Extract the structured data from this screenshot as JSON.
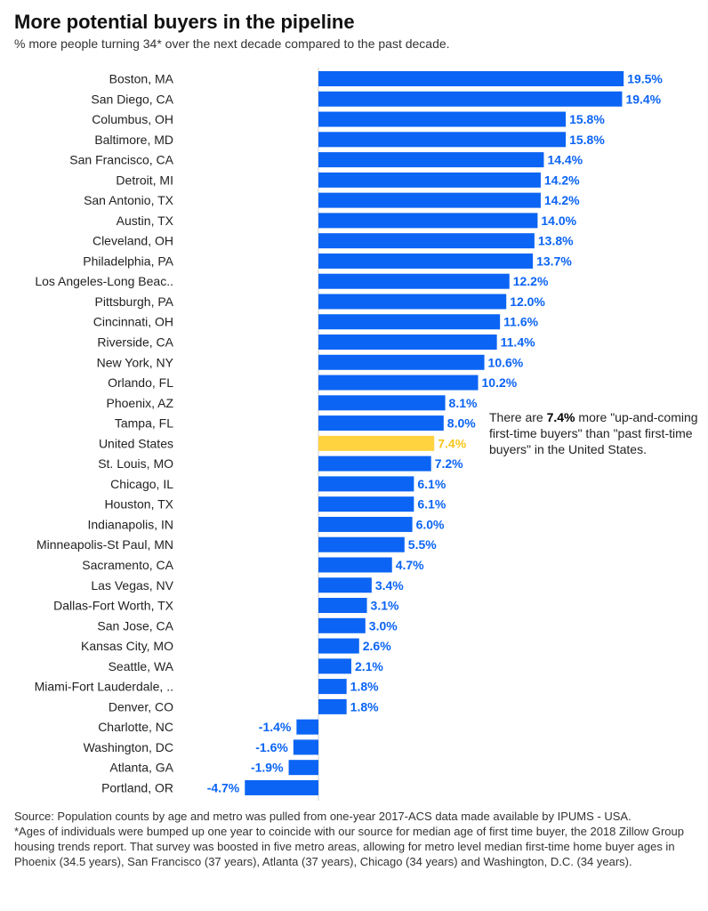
{
  "header": {
    "title": "More potential buyers in the pipeline",
    "subtitle": "% more people turning 34* over the next decade compared to the past decade."
  },
  "annotation": {
    "prefix": "There are ",
    "highlight": "7.4%",
    "suffix": " more \"up-and-coming first-time buyers\" than \"past first-time buyers\" in the United States."
  },
  "footer": {
    "source": "Source: Population counts by age and metro was pulled from one-year 2017-ACS data made available by IPUMS - USA.",
    "note": "*Ages of individuals were bumped up one year to coincide with our source for median age of first time buyer, the 2018 Zillow Group housing trends report. That survey was boosted in five metro areas, allowing for metro level median first-time home buyer ages in Phoenix (34.5 years), San Francisco (37 years), Atlanta (37 years), Chicago (34 years) and Washington, D.C. (34 years)."
  },
  "colors": {
    "bar": "#0b64f4",
    "highlight": "#ffd23f",
    "label": "#0b64f4",
    "highlight_label": "#f5c518"
  },
  "chart_data": {
    "type": "bar",
    "orientation": "horizontal",
    "highlight_category": "United States",
    "categories": [
      "Boston, MA",
      "San Diego, CA",
      "Columbus, OH",
      "Baltimore, MD",
      "San Francisco, CA",
      "Detroit, MI",
      "San Antonio, TX",
      "Austin, TX",
      "Cleveland, OH",
      "Philadelphia, PA",
      "Los Angeles-Long Beac..",
      "Pittsburgh, PA",
      "Cincinnati, OH",
      "Riverside, CA",
      "New York, NY",
      "Orlando, FL",
      "Phoenix, AZ",
      "Tampa, FL",
      "United States",
      "St. Louis, MO",
      "Chicago, IL",
      "Houston, TX",
      "Indianapolis, IN",
      "Minneapolis-St Paul, MN",
      "Sacramento, CA",
      "Las Vegas, NV",
      "Dallas-Fort Worth, TX",
      "San Jose, CA",
      "Kansas City, MO",
      "Seattle, WA",
      "Miami-Fort Lauderdale, ..",
      "Denver, CO",
      "Charlotte, NC",
      "Washington, DC",
      "Atlanta, GA",
      "Portland, OR"
    ],
    "values": [
      19.5,
      19.4,
      15.8,
      15.8,
      14.4,
      14.2,
      14.2,
      14.0,
      13.8,
      13.7,
      12.2,
      12.0,
      11.6,
      11.4,
      10.6,
      10.2,
      8.1,
      8.0,
      7.4,
      7.2,
      6.1,
      6.1,
      6.0,
      5.5,
      4.7,
      3.4,
      3.1,
      3.0,
      2.6,
      2.1,
      1.8,
      1.8,
      -1.4,
      -1.6,
      -1.9,
      -4.7
    ],
    "value_labels": [
      "19.5%",
      "19.4%",
      "15.8%",
      "15.8%",
      "14.4%",
      "14.2%",
      "14.2%",
      "14.0%",
      "13.8%",
      "13.7%",
      "12.2%",
      "12.0%",
      "11.6%",
      "11.4%",
      "10.6%",
      "10.2%",
      "8.1%",
      "8.0%",
      "7.4%",
      "7.2%",
      "6.1%",
      "6.1%",
      "6.0%",
      "5.5%",
      "4.7%",
      "3.4%",
      "3.1%",
      "3.0%",
      "2.6%",
      "2.1%",
      "1.8%",
      "1.8%",
      "-1.4%",
      "-1.6%",
      "-1.9%",
      "-4.7%"
    ]
  }
}
